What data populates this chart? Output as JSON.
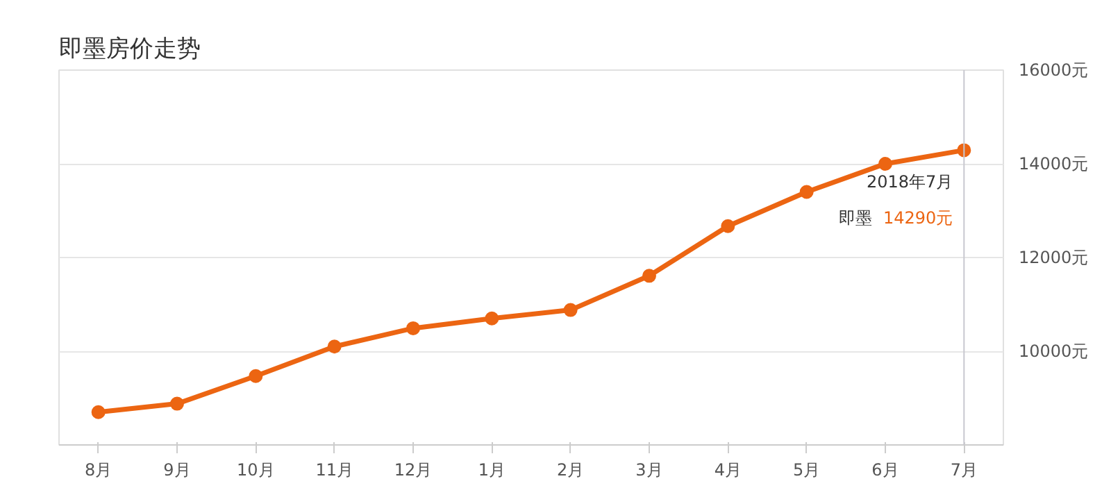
{
  "chart_data": {
    "type": "line",
    "title": "即墨房价走势",
    "categories": [
      "8月",
      "9月",
      "10月",
      "11月",
      "12月",
      "1月",
      "2月",
      "3月",
      "4月",
      "5月",
      "6月",
      "7月"
    ],
    "series": [
      {
        "name": "即墨",
        "color": "#ec6512",
        "values": [
          8700,
          8880,
          9470,
          10100,
          10490,
          10700,
          10880,
          11610,
          12670,
          13400,
          14000,
          14290
        ]
      }
    ],
    "ylim": [
      8000,
      16000
    ],
    "yticks": [
      {
        "value": 8000,
        "label": null
      },
      {
        "value": 10000,
        "label": "10000元"
      },
      {
        "value": 12000,
        "label": "12000元"
      },
      {
        "value": 14000,
        "label": "14000元"
      },
      {
        "value": 16000,
        "label": "16000元"
      }
    ],
    "grid": "y",
    "marker": "circle",
    "line_style": "solid",
    "ref_lines": [
      {
        "axis": "x",
        "value": "7月",
        "color": "#c8c8d0"
      }
    ],
    "annotations": [
      {
        "text": "2018年7月",
        "x": "7月",
        "y": 14290
      },
      "14290元"
    ]
  }
}
